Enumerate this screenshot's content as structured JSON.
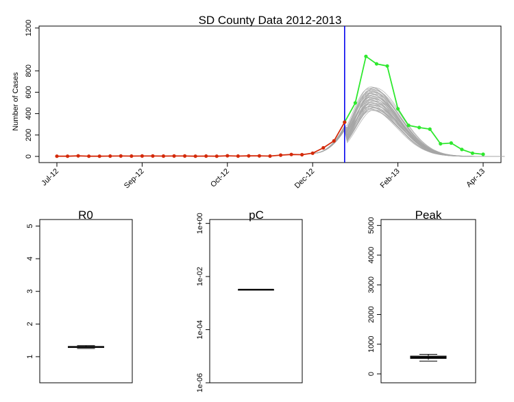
{
  "chart_data": [
    {
      "type": "line",
      "title": "SD County Data 2012-2013",
      "xlabel": "",
      "ylabel": "Number of Cases",
      "ylim": [
        0,
        1200
      ],
      "yticks": [
        "0",
        "200",
        "400",
        "600",
        "800",
        "1200"
      ],
      "x_tick_labels": [
        "Jul-12",
        "Sep-12",
        "Oct-12",
        "Dec-12",
        "Feb-13",
        "Apr-13"
      ],
      "x_tick_weeks": [
        0,
        8,
        16,
        24,
        32,
        40
      ],
      "vline_week": 27,
      "grid": false,
      "legend": "none",
      "colors": {
        "observed": "#d42a0a",
        "future": "#2ee82e",
        "simulations": "#a6a6a6",
        "cutoff": "#0000ee"
      },
      "series": [
        {
          "role": "observed",
          "x": [
            0,
            1,
            2,
            3,
            4,
            5,
            6,
            7,
            8,
            9,
            10,
            11,
            12,
            13,
            14,
            15,
            16,
            17,
            18,
            19,
            20,
            21,
            22,
            23,
            24,
            25,
            26,
            27
          ],
          "values": [
            2,
            2,
            5,
            2,
            2,
            3,
            4,
            3,
            4,
            4,
            3,
            4,
            4,
            2,
            3,
            2,
            6,
            3,
            5,
            5,
            3,
            12,
            18,
            16,
            30,
            80,
            145,
            320
          ]
        },
        {
          "role": "future",
          "x": [
            27,
            28,
            29,
            30,
            31,
            32,
            33,
            34,
            35,
            36,
            37,
            38,
            39,
            40
          ],
          "values": [
            320,
            500,
            935,
            865,
            845,
            445,
            290,
            270,
            255,
            118,
            125,
            65,
            30,
            20
          ]
        }
      ],
      "simulations": {
        "count": 40,
        "start_week": 24,
        "end_week": 42,
        "peak_week": 29.5,
        "peak_min": 430,
        "peak_max": 650
      }
    },
    {
      "type": "box",
      "title": "R0",
      "ylim": [
        0.2,
        5.2
      ],
      "yticks": [
        "1",
        "2",
        "3",
        "4",
        "5"
      ],
      "box": {
        "min": 1.25,
        "q1": 1.28,
        "median": 1.3,
        "q3": 1.31,
        "max": 1.34
      }
    },
    {
      "type": "box",
      "title": "pC",
      "scale": "log",
      "ylim": [
        1e-06,
        1.4
      ],
      "yticks": [
        "1e-06",
        "1e-04",
        "1e-02",
        "1e+00"
      ],
      "box": {
        "min": 0.0032,
        "q1": 0.0032,
        "median": 0.0032,
        "q3": 0.0032,
        "max": 0.0032
      }
    },
    {
      "type": "box",
      "title": "Peak",
      "ylim": [
        -300,
        5200
      ],
      "yticks": [
        "0",
        "1000",
        "2000",
        "3000",
        "4000",
        "5000"
      ],
      "box": {
        "min": 430,
        "q1": 520,
        "median": 560,
        "q3": 600,
        "max": 660
      }
    }
  ]
}
